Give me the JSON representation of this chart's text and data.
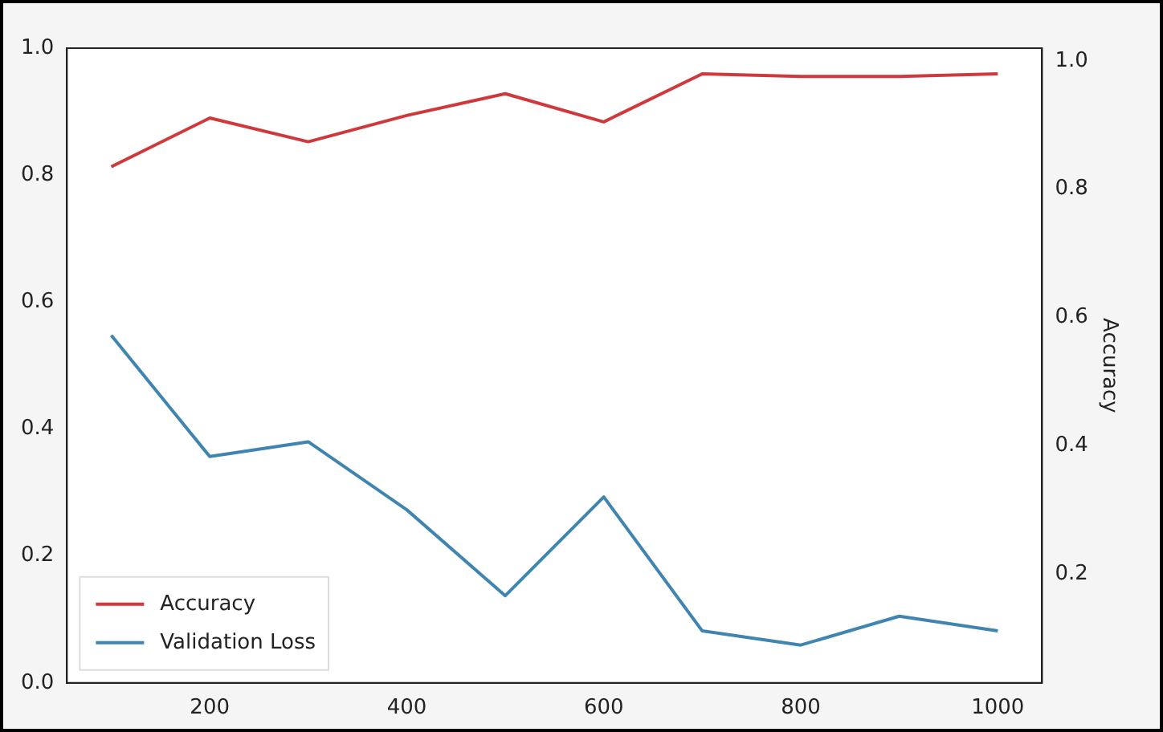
{
  "chart_data": {
    "type": "line",
    "y2label": "Accuracy",
    "x": [
      100,
      200,
      300,
      400,
      500,
      600,
      700,
      800,
      900,
      1000
    ],
    "series": [
      {
        "name": "Accuracy",
        "color": "#d0393b",
        "axis": "y2",
        "values": [
          0.835,
          0.911,
          0.874,
          0.915,
          0.949,
          0.905,
          0.98,
          0.976,
          0.976,
          0.98
        ]
      },
      {
        "name": "Validation Loss",
        "color": "#3f85b0",
        "axis": "y2",
        "values": [
          0.572,
          0.383,
          0.406,
          0.3,
          0.166,
          0.32,
          0.111,
          0.089,
          0.134,
          0.111
        ]
      }
    ],
    "xlim": [
      55,
      1045
    ],
    "xticks": [
      200,
      400,
      600,
      800,
      1000
    ],
    "ylim": [
      0,
      1
    ],
    "yticks": [
      {
        "value": 0,
        "label": "0.0"
      },
      0.2,
      0.4,
      0.6,
      0.8,
      {
        "value": 1,
        "label": "1.0"
      }
    ],
    "y2lim": [
      0.03,
      1.02
    ],
    "y2ticks": [
      0.2,
      0.4,
      0.6,
      0.8,
      {
        "value": 1,
        "label": "1.0"
      }
    ],
    "grid": false,
    "legend": "bottom left",
    "marker": "none",
    "line_style": "solid"
  }
}
